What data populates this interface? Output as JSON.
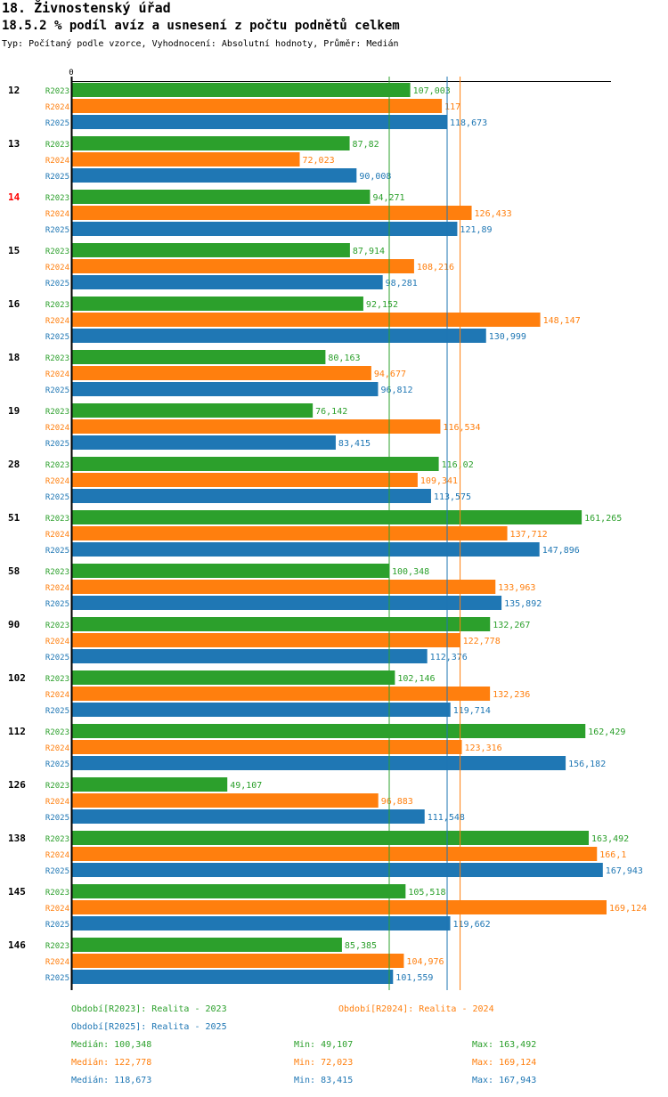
{
  "header": {
    "title": "18. Živnostenský úřad",
    "subtitle": "18.5.2 % podíl avíz a usnesení z počtu podnětů celkem",
    "description": "Typ: Počítaný podle vzorce, Vyhodnocení: Absolutní hodnoty, Průměr: Medián"
  },
  "chart_data": {
    "type": "bar",
    "orientation": "horizontal",
    "title": "18.5.2 % podíl avíz a usnesení z počtu podnětů celkem",
    "xlabel": "",
    "ylabel": "",
    "axis_zero_label": "0",
    "xlim": [
      0,
      169.124
    ],
    "categories": [
      "12",
      "13",
      "14",
      "15",
      "16",
      "18",
      "19",
      "28",
      "51",
      "58",
      "90",
      "102",
      "112",
      "126",
      "138",
      "145",
      "146"
    ],
    "highlighted_category": "14",
    "series": [
      {
        "name": "R2023",
        "color": "#2ca02c",
        "values": [
          107.003,
          87.82,
          94.271,
          87.914,
          92.152,
          80.163,
          76.142,
          116.02,
          161.265,
          100.348,
          132.267,
          102.146,
          162.429,
          49.107,
          163.492,
          105.518,
          85.385
        ],
        "labels": [
          "107,003",
          "87,82",
          "94,271",
          "87,914",
          "92,152",
          "80,163",
          "76,142",
          "116,02",
          "161,265",
          "100,348",
          "132,267",
          "102,146",
          "162,429",
          "49,107",
          "163,492",
          "105,518",
          "85,385"
        ]
      },
      {
        "name": "R2024",
        "color": "#ff7f0e",
        "values": [
          117,
          72.023,
          126.433,
          108.216,
          148.147,
          94.677,
          116.534,
          109.341,
          137.712,
          133.963,
          122.778,
          132.236,
          123.316,
          96.883,
          166.1,
          169.124,
          104.976
        ],
        "labels": [
          "117",
          "72,023",
          "126,433",
          "108,216",
          "148,147",
          "94,677",
          "116,534",
          "109,341",
          "137,712",
          "133,963",
          "122,778",
          "132,236",
          "123,316",
          "96,883",
          "166,1",
          "169,124",
          "104,976"
        ]
      },
      {
        "name": "R2025",
        "color": "#1f77b4",
        "values": [
          118.673,
          90.008,
          121.89,
          98.281,
          130.999,
          96.812,
          83.415,
          113.575,
          147.896,
          135.892,
          112.376,
          119.714,
          156.182,
          111.548,
          167.943,
          119.662,
          101.559
        ],
        "labels": [
          "118,673",
          "90,008",
          "121,89",
          "98,281",
          "130,999",
          "96,812",
          "83,415",
          "113,575",
          "147,896",
          "135,892",
          "112,376",
          "119,714",
          "156,182",
          "111,548",
          "167,943",
          "119,662",
          "101,559"
        ]
      }
    ],
    "median_lines": [
      {
        "series": "R2023",
        "value": 100.348
      },
      {
        "series": "R2024",
        "value": 122.778
      },
      {
        "series": "R2025",
        "value": 118.673
      }
    ],
    "grid": false,
    "legend_position": "bottom"
  },
  "legend": {
    "periods": [
      {
        "text": "Období[R2023]: Realita - 2023",
        "color": "#2ca02c"
      },
      {
        "text": "Období[R2024]: Realita - 2024",
        "color": "#ff7f0e"
      },
      {
        "text": "Období[R2025]: Realita - 2025",
        "color": "#1f77b4"
      }
    ],
    "stats": [
      {
        "median": "Medián: 100,348",
        "min": "Min: 49,107",
        "max": "Max: 163,492",
        "color": "#2ca02c"
      },
      {
        "median": "Medián: 122,778",
        "min": "Min: 72,023",
        "max": "Max: 169,124",
        "color": "#ff7f0e"
      },
      {
        "median": "Medián: 118,673",
        "min": "Min: 83,415",
        "max": "Max: 167,943",
        "color": "#1f77b4"
      }
    ]
  }
}
